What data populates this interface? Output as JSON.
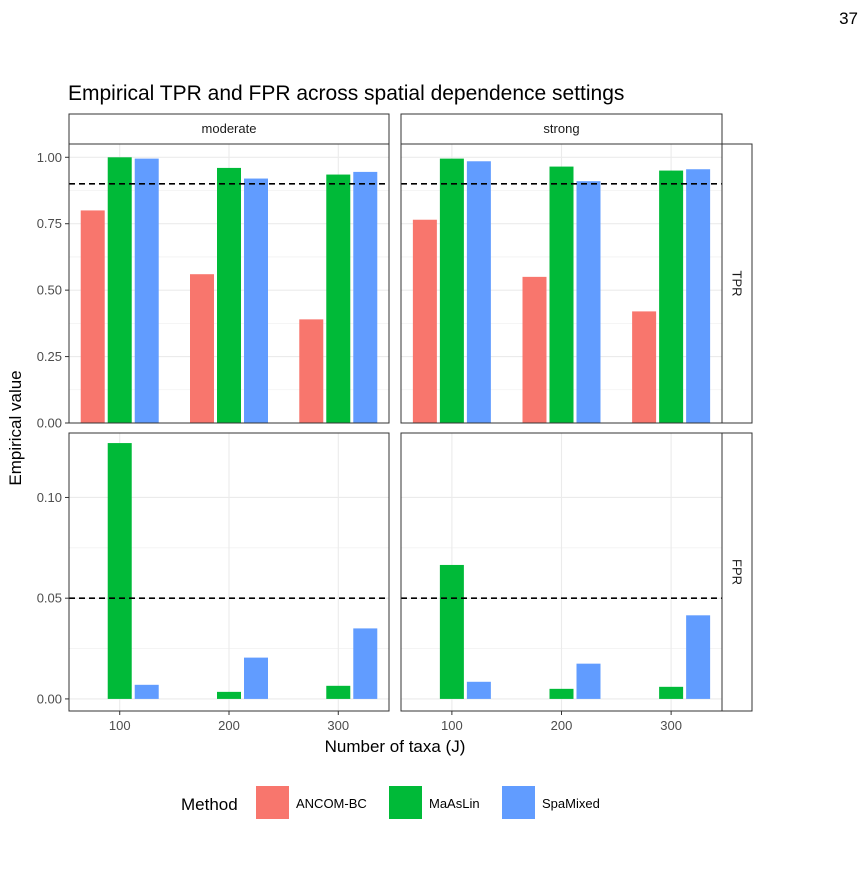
{
  "page_number": "37",
  "chart_data": {
    "type": "bar",
    "title": "Empirical TPR and FPR across spatial dependence settings",
    "xlabel": "Number of taxa (J)",
    "ylabel": "Empirical value",
    "categories": [
      "100",
      "200",
      "300"
    ],
    "column_facets": [
      "moderate",
      "strong"
    ],
    "row_facets": [
      "TPR",
      "FPR"
    ],
    "legend": {
      "title": "Method",
      "placement": "bottom",
      "entries": [
        "ANCOM-BC",
        "MaAsLin",
        "SpaMixed"
      ]
    },
    "colors": {
      "ANCOM-BC": "#F8766D",
      "MaAsLin": "#00BA38",
      "SpaMixed": "#619CFF"
    },
    "panels": [
      {
        "row": "TPR",
        "col": "moderate",
        "ylim": [
          0,
          1.05
        ],
        "yticks": [
          0,
          0.25,
          0.5,
          0.75,
          1.0
        ],
        "ytick_labels": [
          "0.00",
          "0.25",
          "0.50",
          "0.75",
          "1.00"
        ],
        "reference_line": 0.9,
        "series": [
          {
            "name": "ANCOM-BC",
            "values": [
              0.8,
              0.56,
              0.39
            ]
          },
          {
            "name": "MaAsLin",
            "values": [
              1.0,
              0.96,
              0.935
            ]
          },
          {
            "name": "SpaMixed",
            "values": [
              0.995,
              0.92,
              0.945
            ]
          }
        ]
      },
      {
        "row": "TPR",
        "col": "strong",
        "ylim": [
          0,
          1.05
        ],
        "reference_line": 0.9,
        "series": [
          {
            "name": "ANCOM-BC",
            "values": [
              0.765,
              0.55,
              0.42
            ]
          },
          {
            "name": "MaAsLin",
            "values": [
              0.995,
              0.965,
              0.95
            ]
          },
          {
            "name": "SpaMixed",
            "values": [
              0.985,
              0.91,
              0.955
            ]
          }
        ]
      },
      {
        "row": "FPR",
        "col": "moderate",
        "ylim": [
          -0.006,
          0.132
        ],
        "yticks": [
          0,
          0.05,
          0.1
        ],
        "ytick_labels": [
          "0.00",
          "0.05",
          "0.10"
        ],
        "reference_line": 0.05,
        "series": [
          {
            "name": "ANCOM-BC",
            "values": [
              0,
              0,
              0
            ]
          },
          {
            "name": "MaAsLin",
            "values": [
              0.127,
              0.0035,
              0.0065
            ]
          },
          {
            "name": "SpaMixed",
            "values": [
              0.007,
              0.0205,
              0.035
            ]
          }
        ]
      },
      {
        "row": "FPR",
        "col": "strong",
        "ylim": [
          -0.006,
          0.132
        ],
        "reference_line": 0.05,
        "series": [
          {
            "name": "ANCOM-BC",
            "values": [
              0,
              0,
              0
            ]
          },
          {
            "name": "MaAsLin",
            "values": [
              0.0665,
              0.005,
              0.006
            ]
          },
          {
            "name": "SpaMixed",
            "values": [
              0.0085,
              0.0175,
              0.0415
            ]
          }
        ]
      }
    ]
  }
}
